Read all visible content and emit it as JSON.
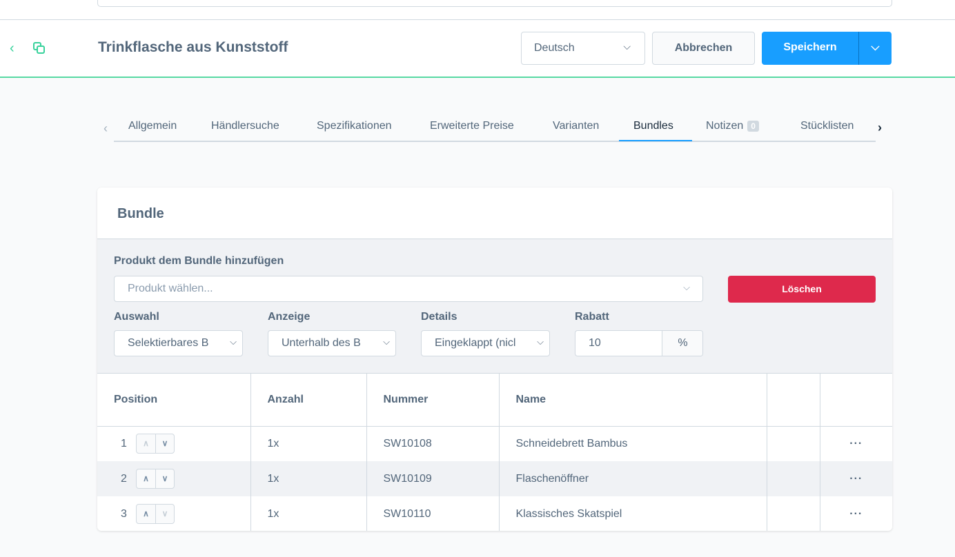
{
  "header": {
    "title": "Trinkflasche aus Kunststoff",
    "language": "Deutsch",
    "cancel_label": "Abbrechen",
    "save_label": "Speichern"
  },
  "tabs": [
    {
      "label": "Allgemein"
    },
    {
      "label": "Händlersuche"
    },
    {
      "label": "Spezifikationen"
    },
    {
      "label": "Erweiterte Preise"
    },
    {
      "label": "Varianten"
    },
    {
      "label": "Bundles",
      "active": true
    },
    {
      "label": "Notizen",
      "badge": "0"
    },
    {
      "label": "Stücklisten"
    }
  ],
  "card": {
    "title": "Bundle",
    "form": {
      "product_label": "Produkt dem Bundle hinzufügen",
      "product_placeholder": "Produkt wählen...",
      "delete_label": "Löschen",
      "auswahl_label": "Auswahl",
      "auswahl_value": "Selektierbares B",
      "anzeige_label": "Anzeige",
      "anzeige_value": "Unterhalb des B",
      "details_label": "Details",
      "details_value": "Eingeklappt (nicl",
      "rabatt_label": "Rabatt",
      "rabatt_value": "10",
      "rabatt_unit": "%"
    },
    "table": {
      "columns": [
        "Position",
        "Anzahl",
        "Nummer",
        "Name",
        "",
        ""
      ],
      "rows": [
        {
          "position": "1",
          "anzahl": "1x",
          "nummer": "SW10108",
          "name": "Schneidebrett Bambus",
          "actions": "···"
        },
        {
          "position": "2",
          "anzahl": "1x",
          "nummer": "SW10109",
          "name": "Flaschenöffner",
          "actions": "···"
        },
        {
          "position": "3",
          "anzahl": "1x",
          "nummer": "SW10110",
          "name": "Klassisches Skatspiel",
          "actions": "···"
        }
      ]
    }
  },
  "colors": {
    "accent": "#189eff",
    "success": "#57d9a3",
    "danger": "#de294c"
  }
}
